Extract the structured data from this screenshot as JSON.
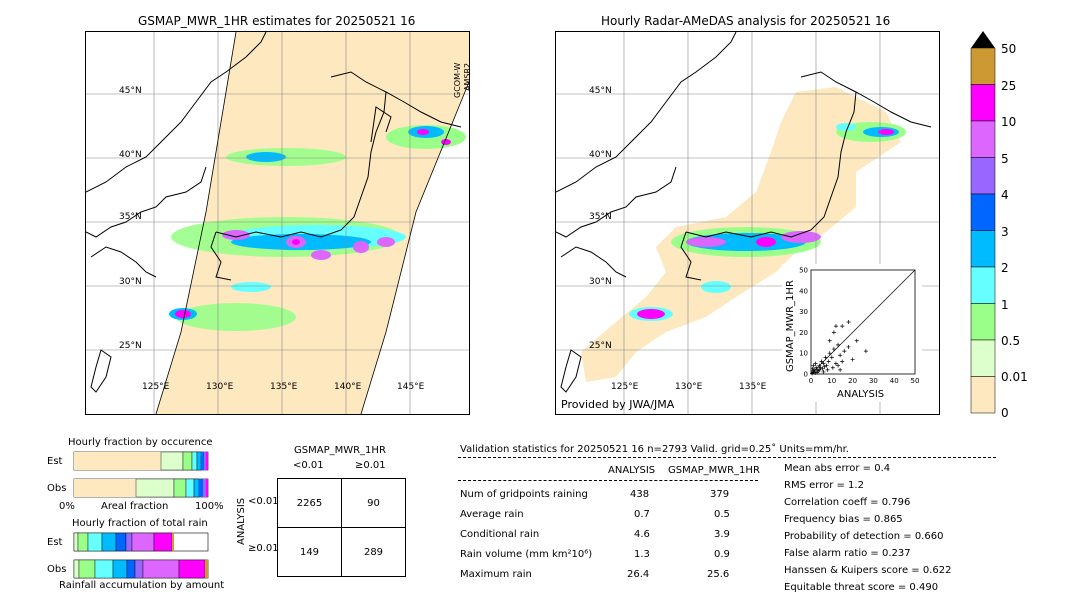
{
  "left_panel": {
    "title": "GSMAP_MWR_1HR estimates for 20250521 16",
    "sensor_label_1": "GCOM-W",
    "sensor_label_2": "AMSR2",
    "lat_labels": [
      "45°N",
      "40°N",
      "35°N",
      "30°N",
      "25°N"
    ],
    "lon_labels": [
      "125°E",
      "130°E",
      "135°E",
      "140°E",
      "145°E"
    ]
  },
  "right_panel": {
    "title": "Hourly Radar-AMeDAS analysis for 20250521 16",
    "lat_labels": [
      "45°N",
      "40°N",
      "35°N",
      "30°N",
      "25°N"
    ],
    "lon_labels": [
      "125°E",
      "130°E",
      "135°E"
    ],
    "credit": "Provided by JWA/JMA"
  },
  "colorbar": {
    "labels": [
      "50",
      "25",
      "10",
      "5",
      "4",
      "3",
      "2",
      "1",
      "0.5",
      "0.01",
      "0"
    ],
    "colors": [
      "#cc9933",
      "#ff00ff",
      "#dd66ff",
      "#9966ff",
      "#0066ff",
      "#00bbff",
      "#66ffff",
      "#99ff88",
      "#ddffcc",
      "#fde8c0"
    ]
  },
  "chart_data": [
    {
      "type": "scatter",
      "title": "",
      "xlabel": "ANALYSIS",
      "ylabel": "GSMAP_MWR_1HR",
      "xlim": [
        0,
        50
      ],
      "ylim": [
        0,
        50
      ],
      "ticks": [
        "0",
        "10",
        "20",
        "30",
        "40",
        "50"
      ],
      "points": [
        [
          0.5,
          0.3
        ],
        [
          1,
          0.8
        ],
        [
          1.5,
          2
        ],
        [
          2,
          1
        ],
        [
          2.5,
          3
        ],
        [
          3,
          2
        ],
        [
          3.5,
          1.5
        ],
        [
          4,
          4
        ],
        [
          4.5,
          3
        ],
        [
          5,
          6
        ],
        [
          5.5,
          2.5
        ],
        [
          6,
          5
        ],
        [
          6.5,
          3.5
        ],
        [
          7,
          8
        ],
        [
          7.5,
          4
        ],
        [
          8,
          2
        ],
        [
          8.5,
          6
        ],
        [
          9,
          10
        ],
        [
          10,
          8
        ],
        [
          10.5,
          3
        ],
        [
          11,
          12
        ],
        [
          12,
          5
        ],
        [
          13,
          14
        ],
        [
          14,
          9
        ],
        [
          15,
          6
        ],
        [
          16,
          11
        ],
        [
          18,
          13
        ],
        [
          20,
          7
        ],
        [
          22,
          16
        ],
        [
          26.4,
          11
        ],
        [
          2,
          0.5
        ],
        [
          3,
          0.7
        ],
        [
          1,
          1.5
        ],
        [
          4,
          2
        ],
        [
          6,
          1
        ],
        [
          0.8,
          2.5
        ],
        [
          1.2,
          4
        ],
        [
          2.2,
          5
        ],
        [
          9,
          16
        ],
        [
          11,
          20
        ],
        [
          12,
          23
        ],
        [
          14,
          2
        ],
        [
          13,
          4
        ],
        [
          15,
          23
        ],
        [
          18,
          25
        ]
      ]
    },
    {
      "type": "bar",
      "title": "Hourly fraction by occurence",
      "categories": [
        "Est",
        "Obs"
      ],
      "xlabel": "Areal fraction",
      "x_tick_labels": [
        "0%",
        "100%"
      ]
    },
    {
      "type": "bar",
      "title": "Hourly fraction of total rain",
      "categories": [
        "Est",
        "Obs"
      ],
      "xlabel": "Rainfall accumulation by amount"
    }
  ],
  "contingency": {
    "title": "GSMAP_MWR_1HR",
    "col_lt": "<0.01",
    "col_ge": "≥0.01",
    "row_axis": "ANALYSIS",
    "row_lt": "<0.01",
    "row_ge": "≥0.01",
    "cells": [
      "2265",
      "90",
      "149",
      "289"
    ]
  },
  "validation": {
    "header": "Validation statistics for 20250521 16  n=2793 Valid. grid=0.25˚ Units=mm/hr.",
    "col_analysis": "ANALYSIS",
    "col_gsmap": "GSMAP_MWR_1HR",
    "rows": [
      {
        "label": "Num of gridpoints raining",
        "a": "438",
        "g": "379"
      },
      {
        "label": "Average rain",
        "a": "0.7",
        "g": "0.5"
      },
      {
        "label": "Conditional rain",
        "a": "4.6",
        "g": "3.9"
      },
      {
        "label": "Rain volume (mm km²10⁶)",
        "a": "1.3",
        "g": "0.9"
      },
      {
        "label": "Maximum rain",
        "a": "26.4",
        "g": "25.6"
      }
    ],
    "scores": [
      "Mean abs error =    0.4",
      "RMS error =    1.2",
      "Correlation coeff =  0.796",
      "Frequency bias =  0.865",
      "Probability of detection =  0.660",
      "False alarm ratio =  0.237",
      "Hanssen & Kuipers score =  0.622",
      "Equitable threat score =  0.490"
    ]
  }
}
